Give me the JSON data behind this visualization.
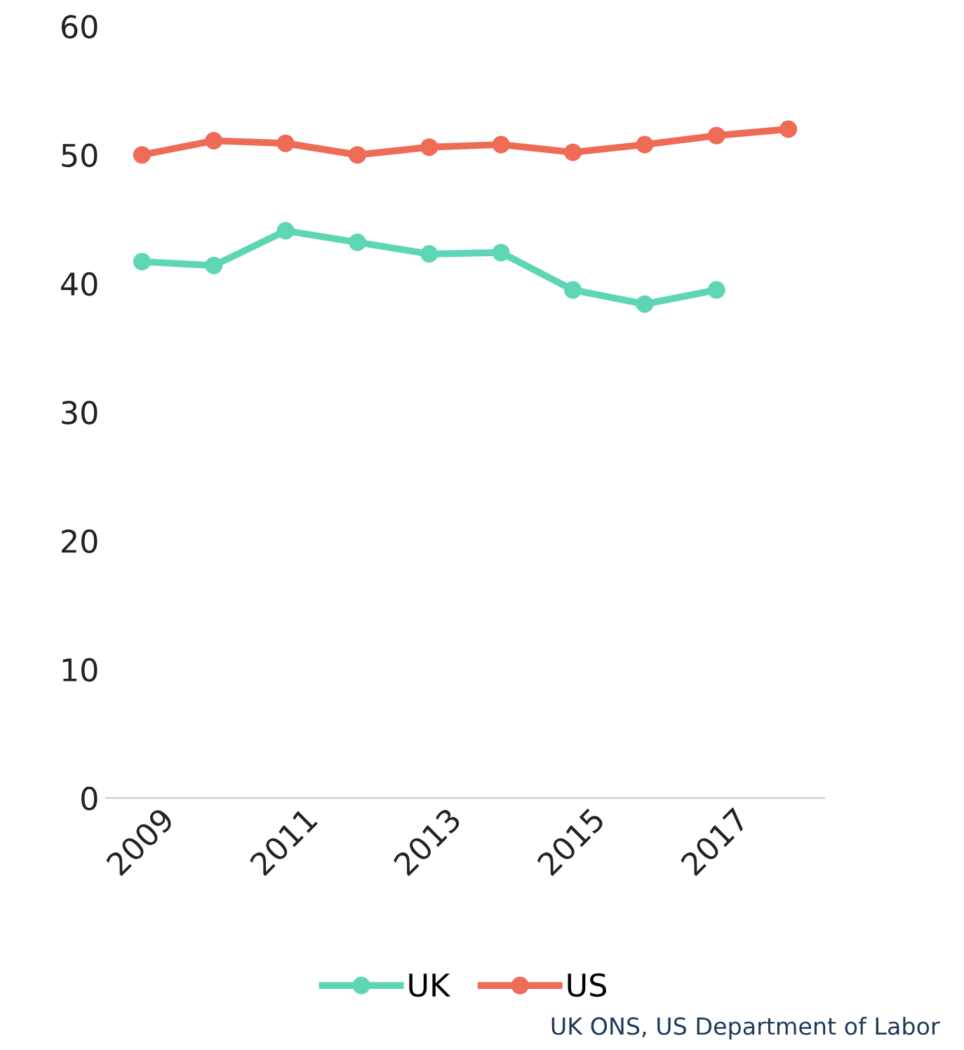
{
  "chart_data": {
    "type": "line",
    "x": [
      2009,
      2010,
      2011,
      2012,
      2013,
      2014,
      2015,
      2016,
      2017,
      2018
    ],
    "series": [
      {
        "name": "UK",
        "color": "#5ed6b3",
        "values": [
          41.7,
          41.4,
          44.1,
          43.2,
          42.3,
          42.4,
          39.5,
          38.4,
          39.5,
          null
        ]
      },
      {
        "name": "US",
        "color": "#ee6b56",
        "values": [
          50.0,
          51.1,
          50.9,
          50.0,
          50.6,
          50.8,
          50.2,
          50.8,
          51.5,
          52.0
        ]
      }
    ],
    "xlim": [
      2008.5,
      2018.5
    ],
    "xticks": [
      2009,
      2011,
      2013,
      2015,
      2017
    ],
    "ylim": [
      0,
      60
    ],
    "yticks": [
      0,
      10,
      20,
      30,
      40,
      50,
      60
    ],
    "grid": false,
    "legend": "bottom",
    "marker": "circle",
    "line_style": "solid",
    "annotations": [
      "UK ONS, US Department of Labor"
    ]
  }
}
